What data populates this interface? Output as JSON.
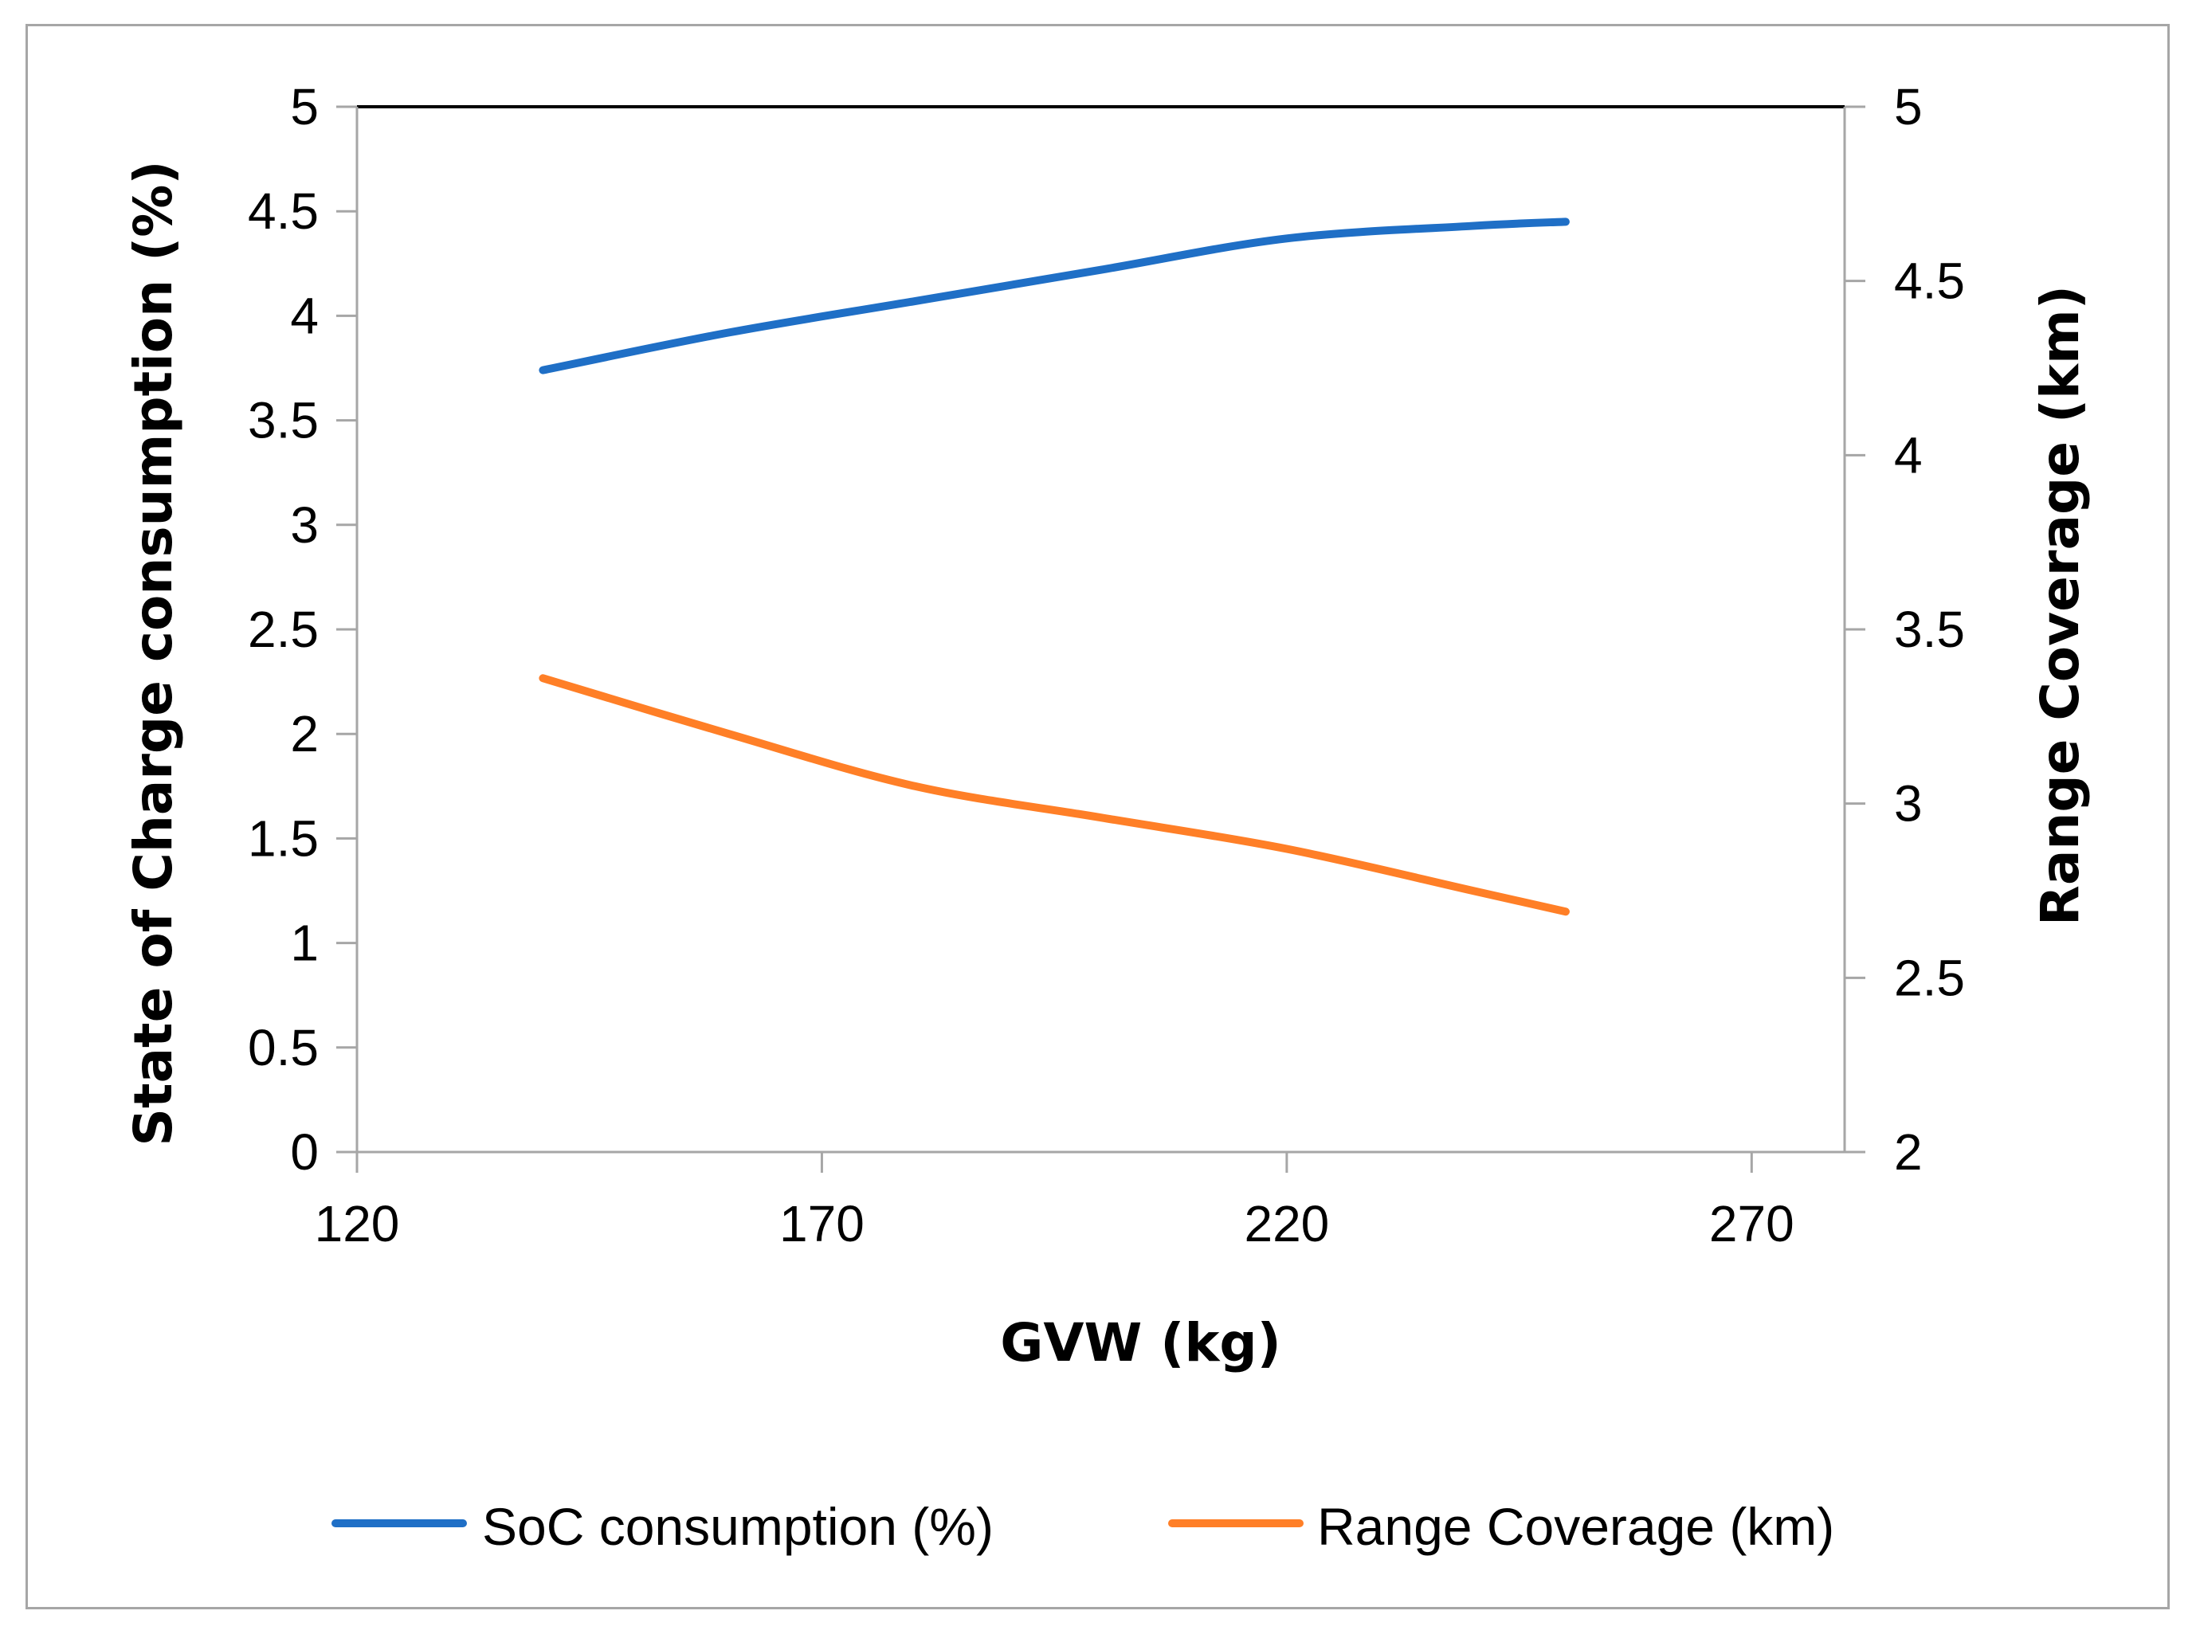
{
  "chart_data": {
    "type": "line",
    "x": [
      140,
      250
    ],
    "xlabel": "GVW (kg)",
    "ylabel": "State of Charge consumption (%)",
    "y2label": "Range Coverage (km)",
    "xlim": [
      120,
      280
    ],
    "ylim": [
      0,
      5
    ],
    "y2lim": [
      2,
      5
    ],
    "xticks": [
      "120",
      "170",
      "220",
      "270"
    ],
    "yticks": [
      "0",
      "0.5",
      "1",
      "1.5",
      "2",
      "2.5",
      "3",
      "3.5",
      "4",
      "4.5",
      "5"
    ],
    "y2ticks": [
      "2",
      "2.5",
      "3",
      "3.5",
      "4",
      "4.5",
      "5"
    ],
    "grid": false,
    "legend_position": "bottom",
    "series": [
      {
        "name": "SoC consumption (%)",
        "axis": "left",
        "color": "#1f6fc6",
        "x": [
          140,
          160,
          180,
          200,
          220,
          240,
          250
        ],
        "values": [
          3.74,
          3.92,
          4.07,
          4.22,
          4.37,
          4.43,
          4.45
        ]
      },
      {
        "name": "Range Coverage (km)",
        "axis": "right",
        "color": "#ff7f27",
        "x": [
          140,
          160,
          180,
          200,
          220,
          240,
          250
        ],
        "values": [
          3.36,
          3.2,
          3.05,
          2.96,
          2.87,
          2.75,
          2.69
        ]
      }
    ]
  }
}
